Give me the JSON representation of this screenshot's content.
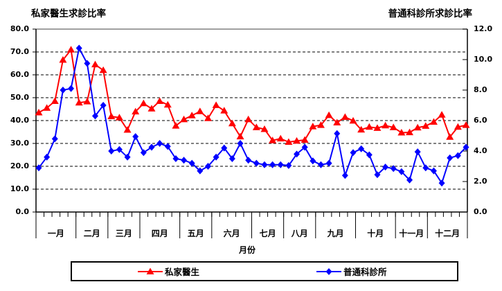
{
  "chart_data": {
    "type": "line",
    "title_left": "私家醫生求診比率",
    "title_right": "普通科診所求診比率",
    "xlabel": "月份",
    "months": [
      "一月",
      "二月",
      "三月",
      "四月",
      "五月",
      "六月",
      "七月",
      "八月",
      "九月",
      "十月",
      "十一月",
      "十二月"
    ],
    "weeks_per_month": [
      5,
      4,
      4,
      5,
      4,
      5,
      4,
      4,
      5,
      5,
      4,
      5
    ],
    "grid": "horizontal-dashed",
    "legend_position": "bottom",
    "frame_top_color": "#808080",
    "axis_color": "#000000",
    "left_axis": {
      "min": 0,
      "max": 80,
      "step": 10,
      "tick_labels": [
        "0.0",
        "10.0",
        "20.0",
        "30.0",
        "40.0",
        "50.0",
        "60.0",
        "70.0",
        "80.0"
      ]
    },
    "right_axis": {
      "min": 0,
      "max": 12,
      "step": 2,
      "tick_labels": [
        "0.0",
        "2.0",
        "4.0",
        "6.0",
        "8.0",
        "10.0",
        "12.0"
      ]
    },
    "series": [
      {
        "name": "私家醫生",
        "axis": "left",
        "color": "#FF0000",
        "marker": "triangle",
        "values": [
          43.5,
          45.5,
          48.5,
          66.5,
          71,
          47.8,
          48.3,
          64.5,
          62,
          41.8,
          41.3,
          35.9,
          43.9,
          47.5,
          45.2,
          48.5,
          46.9,
          37.7,
          40.5,
          42.2,
          44,
          41,
          46.7,
          44.3,
          38.7,
          33,
          40.5,
          37,
          36.2,
          31.3,
          32.1,
          30.6,
          31.1,
          31.5,
          37.4,
          38,
          42.3,
          39.1,
          41.5,
          39.9,
          36,
          37.2,
          36.7,
          37.8,
          37,
          34.7,
          34.8,
          36.9,
          37.6,
          39.4,
          42.5,
          32.8,
          37.2,
          38
        ]
      },
      {
        "name": "普通科診所",
        "axis": "right",
        "color": "#0000FF",
        "marker": "diamond",
        "values": [
          2.9,
          3.6,
          4.8,
          8,
          8.1,
          10.75,
          9.75,
          6.3,
          7,
          4,
          4.1,
          3.6,
          4.95,
          3.9,
          4.25,
          4.5,
          4.3,
          3.5,
          3.4,
          3.2,
          2.7,
          3,
          3.6,
          4.2,
          3.5,
          4.5,
          3.4,
          3.2,
          3.1,
          3.1,
          3.1,
          3.05,
          3.8,
          4.25,
          3.35,
          3.1,
          3.2,
          5.15,
          2.4,
          3.9,
          4.15,
          3.75,
          2.45,
          2.95,
          2.85,
          2.65,
          2.1,
          3.95,
          2.9,
          2.7,
          1.9,
          3.55,
          3.7,
          4.25
        ]
      }
    ]
  }
}
